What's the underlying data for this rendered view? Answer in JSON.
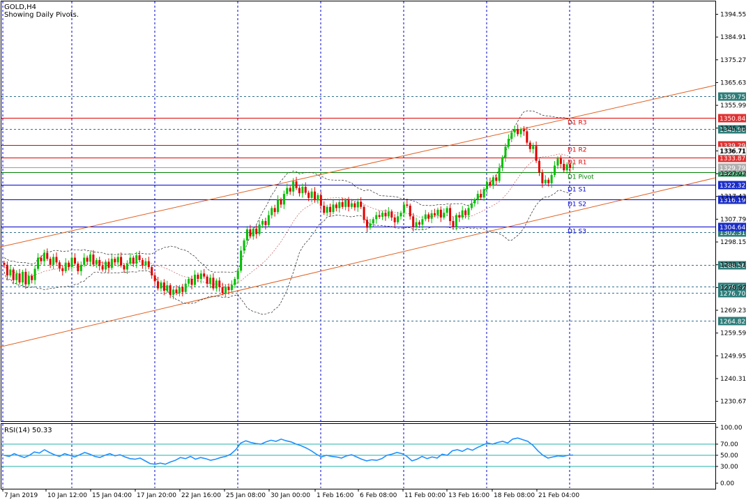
{
  "header": {
    "symbol": "GOLD,H4",
    "subtitle": "Showing Daily Pivots."
  },
  "rsi": {
    "label": "RSI(14) 50.33",
    "value": 50.33,
    "ticks": [
      "100.00",
      "70.00",
      "50.00",
      "30.00",
      "0.00"
    ]
  },
  "colors": {
    "bull": "#00c000",
    "bear": "#e00000",
    "resistance": "#e00000",
    "support": "#0000cc",
    "pivot": "#008000",
    "channel": "#e06020",
    "grid": "#0000cc",
    "rsi_line": "#1e90ff",
    "rsi_levels": "#20b2aa"
  },
  "chart_data": {
    "type": "candlestick",
    "title": "GOLD,H4",
    "subtitle": "Showing Daily Pivots.",
    "ylim": [
      1222.3,
      1400.0
    ],
    "y_ticks": [
      "1394.55",
      "1384.91",
      "1375.27",
      "1365.63",
      "1355.99",
      "1346.35",
      "1336.71",
      "1327.07",
      "1317.43",
      "1307.79",
      "1298.15",
      "1288.51",
      "1278.87",
      "1269.23",
      "1259.59",
      "1249.95",
      "1240.31",
      "1230.67"
    ],
    "x_ticks": [
      "7 Jan 2019",
      "10 Jan 12:00",
      "15 Jan 04:00",
      "17 Jan 20:00",
      "22 Jan 16:00",
      "25 Jan 08:00",
      "30 Jan 00:00",
      "1 Feb 16:00",
      "6 Feb 08:00",
      "11 Feb 00:00",
      "13 Feb 16:00",
      "18 Feb 08:00",
      "21 Feb 04:00"
    ],
    "pivots": [
      {
        "name": "R3",
        "label": "D1 R3",
        "value": 1350.84,
        "price_label": "1350.84",
        "type": "resistance"
      },
      {
        "name": "R2",
        "label": "D1 R2",
        "value": 1339.29,
        "price_label": "1339.29",
        "type": "resistance"
      },
      {
        "name": "R1",
        "label": "D1 R1",
        "value": 1333.87,
        "price_label": "1333.87",
        "type": "resistance"
      },
      {
        "name": "Pivot",
        "label": "D1 Pivot",
        "value": 1327.74,
        "price_label": "1327.74",
        "type": "pivot"
      },
      {
        "name": "S1",
        "label": "D1 S1",
        "value": 1322.32,
        "price_label": "1322.32",
        "type": "support"
      },
      {
        "name": "S2",
        "label": "D1 S2",
        "value": 1316.19,
        "price_label": "1316.19",
        "type": "support"
      },
      {
        "name": "S3",
        "label": "D1 S3",
        "value": 1304.64,
        "price_label": "1304.64",
        "type": "support"
      }
    ],
    "dashed_levels": [
      {
        "value": 1359.75,
        "label": "1359.75"
      },
      {
        "value": 1345.9,
        "label": "1345.90"
      },
      {
        "value": 1302.31,
        "label": "1302.31"
      },
      {
        "value": 1288.56,
        "label": "1288.56"
      },
      {
        "value": 1279.22,
        "label": "1279.22"
      },
      {
        "value": 1276.7,
        "label": "1276.70"
      },
      {
        "value": 1264.82,
        "label": "1264.82"
      }
    ],
    "current_price": {
      "value": 1329.79,
      "label": "1329.79"
    },
    "extra_price_label": {
      "value": 1336.71,
      "label": "1336.71"
    },
    "channel": [
      {
        "from": [
          0,
          1296.0
        ],
        "to": [
          1026,
          1364.5
        ]
      },
      {
        "from": [
          0,
          1253.7
        ],
        "to": [
          1026,
          1325.3
        ]
      }
    ],
    "close": [
      1288.5,
      1284.0,
      1286.5,
      1282.0,
      1284.8,
      1281.0,
      1285.5,
      1280.2,
      1283.8,
      1282.0,
      1286.8,
      1291.5,
      1290.0,
      1293.5,
      1291.0,
      1288.5,
      1291.8,
      1289.5,
      1287.0,
      1285.8,
      1289.4,
      1287.5,
      1291.5,
      1289.0,
      1285.8,
      1288.5,
      1291.5,
      1289.8,
      1292.8,
      1288.6,
      1290.5,
      1288.0,
      1286.5,
      1289.8,
      1287.2,
      1291.0,
      1289.5,
      1291.8,
      1288.2,
      1286.5,
      1289.0,
      1291.5,
      1289.0,
      1292.5,
      1290.5,
      1288.2,
      1290.0,
      1287.5,
      1284.0,
      1281.5,
      1278.5,
      1281.0,
      1277.5,
      1279.8,
      1275.8,
      1278.0,
      1276.5,
      1279.0,
      1277.0,
      1280.5,
      1282.5,
      1280.0,
      1284.3,
      1282.5,
      1284.8,
      1283.5,
      1280.5,
      1283.0,
      1278.5,
      1281.8,
      1279.0,
      1276.5,
      1279.2,
      1277.8,
      1280.0,
      1282.5,
      1286.0,
      1294.5,
      1298.8,
      1303.5,
      1300.5,
      1303.8,
      1301.5,
      1305.5,
      1307.0,
      1305.3,
      1309.5,
      1312.5,
      1310.8,
      1316.0,
      1314.0,
      1318.5,
      1321.0,
      1319.5,
      1323.8,
      1321.0,
      1318.8,
      1321.5,
      1319.0,
      1316.8,
      1319.5,
      1315.8,
      1318.0,
      1313.5,
      1310.5,
      1313.0,
      1310.8,
      1314.0,
      1312.5,
      1315.0,
      1313.0,
      1315.8,
      1313.0,
      1314.5,
      1312.8,
      1315.2,
      1313.0,
      1307.5,
      1304.2,
      1306.0,
      1307.8,
      1309.5,
      1308.8,
      1310.5,
      1309.0,
      1311.0,
      1308.5,
      1306.5,
      1309.0,
      1310.5,
      1314.0,
      1313.5,
      1309.0,
      1304.5,
      1306.5,
      1305.5,
      1307.8,
      1309.8,
      1308.0,
      1310.3,
      1309.5,
      1311.8,
      1308.5,
      1310.5,
      1312.5,
      1307.0,
      1304.5,
      1309.5,
      1308.5,
      1311.5,
      1309.5,
      1312.5,
      1314.5,
      1316.0,
      1318.5,
      1317.0,
      1320.5,
      1323.5,
      1322.0,
      1325.5,
      1324.0,
      1329.5,
      1334.0,
      1338.5,
      1341.8,
      1344.5,
      1346.0,
      1343.8,
      1345.8,
      1345.0,
      1340.2,
      1337.5,
      1338.8,
      1332.5,
      1327.5,
      1323.0,
      1324.5,
      1323.0,
      1326.5,
      1330.5,
      1333.5,
      1331.2,
      1328.5,
      1331.0,
      1329.5,
      1329.8
    ],
    "rsi_values": [
      50.0,
      48.0,
      53.0,
      49.0,
      46.0,
      50.0,
      56.0,
      54.0,
      60.0,
      55.0,
      51.0,
      48.0,
      53.0,
      50.0,
      47.0,
      51.0,
      55.0,
      52.0,
      48.0,
      46.0,
      50.0,
      53.0,
      49.0,
      51.0,
      47.0,
      44.0,
      43.0,
      45.0,
      40.0,
      35.0,
      34.0,
      36.0,
      34.0,
      38.0,
      41.0,
      46.0,
      44.0,
      48.0,
      43.0,
      46.0,
      44.0,
      41.0,
      43.0,
      46.0,
      48.0,
      52.0,
      60.0,
      72.0,
      76.0,
      73.0,
      71.0,
      70.0,
      74.0,
      77.0,
      75.0,
      79.0,
      76.0,
      74.0,
      70.0,
      67.0,
      63.0,
      58.0,
      52.0,
      47.0,
      50.0,
      48.0,
      47.0,
      45.0,
      49.0,
      51.0,
      47.0,
      43.0,
      40.0,
      42.0,
      41.0,
      44.0,
      50.0,
      52.0,
      55.0,
      53.0,
      48.0,
      40.0,
      43.0,
      48.0,
      44.0,
      47.0,
      45.0,
      52.0,
      50.0,
      58.0,
      60.0,
      57.0,
      62.0,
      59.0,
      64.0,
      68.0,
      72.0,
      70.0,
      73.0,
      75.0,
      72.0,
      79.0,
      81.0,
      78.0,
      75.0,
      68.0,
      58.0,
      50.0,
      45.0,
      47.0,
      49.0,
      48.0,
      50.0,
      50.33
    ]
  }
}
